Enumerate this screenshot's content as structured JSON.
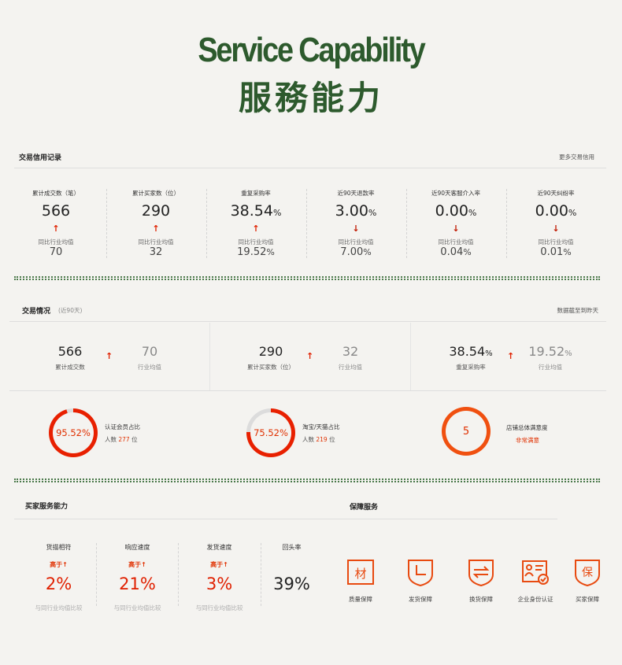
{
  "header": {
    "title_en": "Service Capability",
    "title_cn": "服務能力"
  },
  "credit": {
    "section_label": "交易信用记录",
    "more_link": "更多交易信用",
    "stats": [
      {
        "label": "累计成交数（笔）",
        "value": "566",
        "pct": "",
        "trend": "up",
        "avg_label": "同比行业均值",
        "avg": "70",
        "avg_pct": ""
      },
      {
        "label": "累计买家数（位）",
        "value": "290",
        "pct": "",
        "trend": "up",
        "avg_label": "同比行业均值",
        "avg": "32",
        "avg_pct": ""
      },
      {
        "label": "重复采购率",
        "value": "38.54",
        "pct": "%",
        "trend": "up",
        "avg_label": "同比行业均值",
        "avg": "19.52",
        "avg_pct": "%"
      },
      {
        "label": "近90天退款率",
        "value": "3.00",
        "pct": "%",
        "trend": "down",
        "avg_label": "同比行业均值",
        "avg": "7.00",
        "avg_pct": "%"
      },
      {
        "label": "近90天客服介入率",
        "value": "0.00",
        "pct": "%",
        "trend": "down",
        "avg_label": "同比行业均值",
        "avg": "0.04",
        "avg_pct": "%"
      },
      {
        "label": "近90天纠纷率",
        "value": "0.00",
        "pct": "%",
        "trend": "down",
        "avg_label": "同比行业均值",
        "avg": "0.01",
        "avg_pct": "%"
      }
    ]
  },
  "trade": {
    "section_label": "交易情况",
    "period": "(近90天)",
    "note": "数据截至到昨天",
    "comparisons": [
      {
        "value": "566",
        "pct": "",
        "label": "累计成交数",
        "avg": "70",
        "avg_pct": "",
        "avg_label": "行业均值"
      },
      {
        "value": "290",
        "pct": "",
        "label": "累计买家数（位）",
        "avg": "32",
        "avg_pct": "",
        "avg_label": "行业均值"
      },
      {
        "value": "38.54",
        "pct": "%",
        "label": "重复采购率",
        "avg": "19.52",
        "avg_pct": "%",
        "avg_label": "行业均值"
      }
    ],
    "rings": [
      {
        "value": "95.52%",
        "percent": 95.52,
        "label": "认证会员占比",
        "sub_prefix": "人数",
        "count": "277",
        "sub_suffix": "位"
      },
      {
        "value": "75.52%",
        "percent": 75.52,
        "label": "淘宝/天猫占比",
        "sub_prefix": "人数",
        "count": "219",
        "sub_suffix": "位"
      }
    ],
    "satisfaction": {
      "value": "5",
      "label": "店铺总体满意度",
      "rating": "非常满意"
    }
  },
  "buyer_service": {
    "section_label": "买家服务能力",
    "items": [
      {
        "label": "货描相符",
        "higher": "高于",
        "value": "2%",
        "compare": "与同行业均值比较"
      },
      {
        "label": "响应速度",
        "higher": "高于",
        "value": "21%",
        "compare": "与同行业均值比较"
      },
      {
        "label": "发货速度",
        "higher": "高于",
        "value": "3%",
        "compare": "与同行业均值比较"
      }
    ],
    "repeat": {
      "label": "回头率",
      "value": "39%"
    }
  },
  "guarantee": {
    "section_label": "保障服务",
    "items": [
      {
        "icon": "material-icon",
        "label": "质量保障"
      },
      {
        "icon": "clock-shield-icon",
        "label": "发货保障"
      },
      {
        "icon": "exchange-shield-icon",
        "label": "换货保障"
      },
      {
        "icon": "id-card-icon",
        "label": "企业身份认证"
      },
      {
        "icon": "protect-shield-icon",
        "label": "买家保障"
      }
    ]
  },
  "colors": {
    "brand_green": "#2d5a2d",
    "accent_red": "#e02000",
    "ring_track": "#dcdcdc"
  }
}
